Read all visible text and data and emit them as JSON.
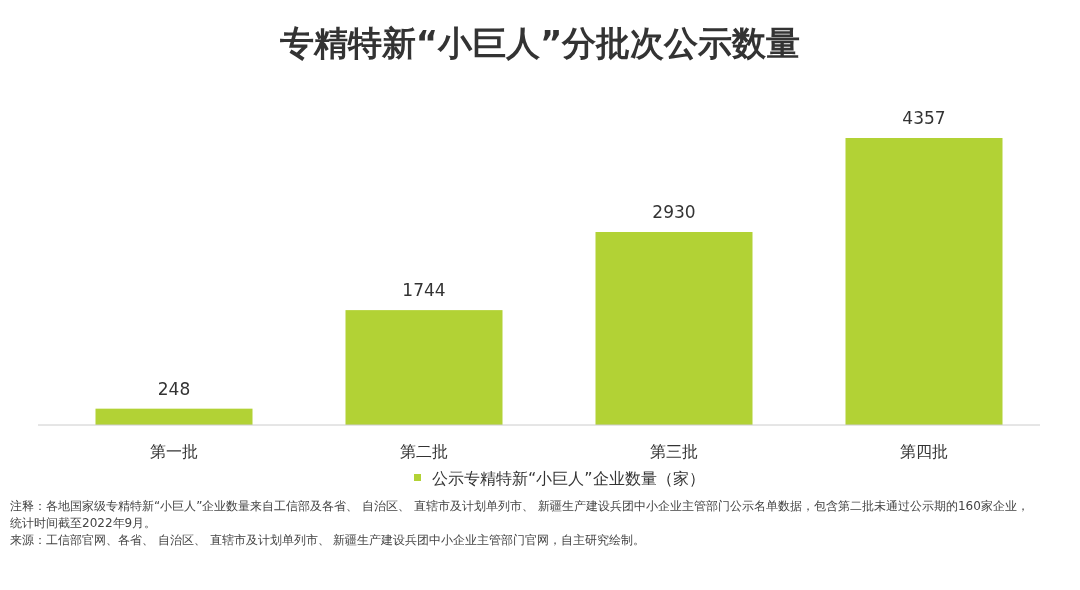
{
  "chart_data": {
    "type": "bar",
    "title": "专精特新“小巨人”分批次公示数量",
    "categories": [
      "第一批",
      "第二批",
      "第三批",
      "第四批"
    ],
    "series": [
      {
        "name": "公示专精特新“小巨人”企业数量（家）",
        "color": "#b2d235",
        "values": [
          248,
          1744,
          2930,
          4357
        ]
      }
    ],
    "data_labels": true,
    "legend": "bottom",
    "annotations": [
      "注释：各地国家级专精特新“小巨人”企业数量来自工信部及各省、 自治区、 直辖市及计划单列市、 新疆生产建设兵团中小企业主管部门公示名单数据，包含第二批未通过公示期的160家企业，统计时间截至2022年9月。",
      "来源：工信部官网、各省、 自治区、 直辖市及计划单列市、 新疆生产建设兵团中小企业主管部门官网，自主研究绘制。"
    ]
  }
}
